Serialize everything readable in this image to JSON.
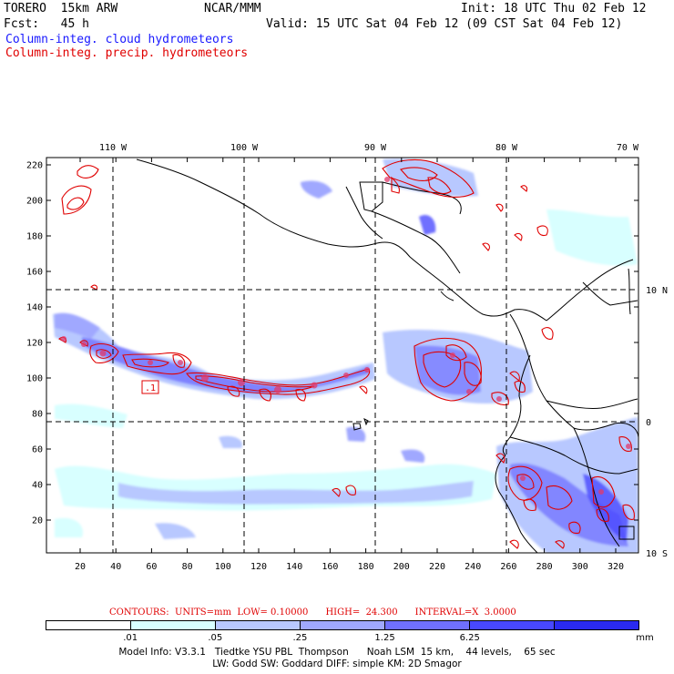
{
  "header": {
    "model": "TORERO  15km ARW",
    "center": "NCAR/MMM",
    "init": "Init: 18 UTC Thu 02 Feb 12",
    "fcst": "Fcst:   45 h",
    "valid": "Valid: 15 UTC Sat 04 Feb 12 (09 CST Sat 04 Feb 12)",
    "field_blue": "Column-integ. cloud hydrometeors",
    "field_red": "Column-integ. precip. hydrometeors"
  },
  "map": {
    "top_lon_labels": [
      "110 W",
      "100 W",
      "90 W",
      "80 W",
      "70 W"
    ],
    "right_lat_labels": [
      "10 N",
      "0",
      "10 S"
    ],
    "y_ticks": [
      "220",
      "200",
      "180",
      "160",
      "140",
      "120",
      "100",
      "80",
      "60",
      "40",
      "20"
    ],
    "x_ticks": [
      "20",
      "40",
      "60",
      "80",
      "100",
      "120",
      "140",
      "160",
      "180",
      "200",
      "220",
      "240",
      "260",
      "280",
      "300",
      "320"
    ],
    "low_marker": ".1",
    "colors": {
      "border": "#000000",
      "precip_contour": "#e00000",
      "grid": "#000000"
    }
  },
  "contours_line": {
    "text": "CONTOURS:  UNITS=mm  LOW= 0.10000      HIGH=  24.300      INTERVAL=X  3.0000"
  },
  "colorbar": {
    "colors": [
      "#ffffff",
      "#d8ffff",
      "#b8c8ff",
      "#a0a8ff",
      "#7070ff",
      "#4848ff",
      "#2a2af0"
    ],
    "labels": [
      ".01",
      ".05",
      ".25",
      "1.25",
      "6.25"
    ],
    "units": "mm"
  },
  "model_info": {
    "line1": "Model Info: V3.3.1   Tiedtke YSU PBL  Thompson      Noah LSM  15 km,    44 levels,    65 sec",
    "line2": "LW: Godd SW: Goddard DIFF: simple KM: 2D Smagor"
  }
}
